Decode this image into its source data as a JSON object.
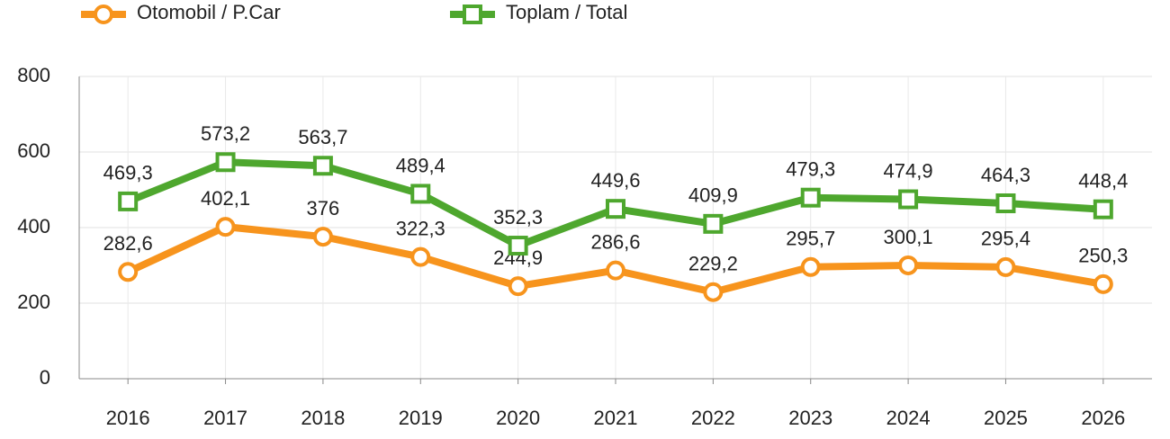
{
  "chart_data": {
    "type": "line",
    "categories": [
      "2016",
      "2017",
      "2018",
      "2019",
      "2020",
      "2021",
      "2022",
      "2023",
      "2024",
      "2025",
      "2026"
    ],
    "series": [
      {
        "name": "Otomobil / P.Car",
        "color": "#f7941d",
        "marker": "circle",
        "values": [
          282.6,
          402.1,
          376,
          322.3,
          244.9,
          286.6,
          229.2,
          295.7,
          300.1,
          295.4,
          250.3
        ],
        "value_labels": [
          "282,6",
          "402,1",
          "376",
          "322,3",
          "244,9",
          "286,6",
          "229,2",
          "295,7",
          "300,1",
          "295,4",
          "250,3"
        ]
      },
      {
        "name": "Toplam / Total",
        "color": "#4ea72e",
        "marker": "square",
        "values": [
          469.3,
          573.2,
          563.7,
          489.4,
          352.3,
          449.6,
          409.9,
          479.3,
          474.9,
          464.3,
          448.4
        ],
        "value_labels": [
          "469,3",
          "573,2",
          "563,7",
          "489,4",
          "352,3",
          "449,6",
          "409,9",
          "479,3",
          "474,9",
          "464,3",
          "448,4"
        ]
      }
    ],
    "ylim": [
      0,
      800
    ],
    "yticks": [
      0,
      200,
      400,
      600,
      800
    ],
    "grid": true,
    "legend": "top"
  }
}
